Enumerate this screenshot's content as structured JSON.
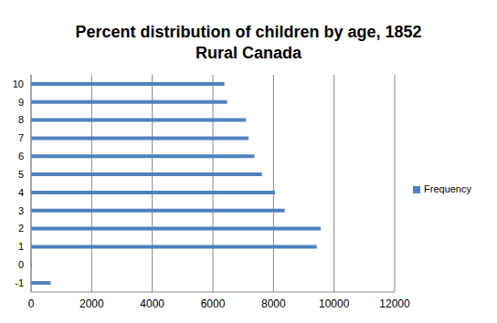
{
  "chart_data": {
    "type": "bar",
    "title": "Percent distribution of children by age, 1852 Rural Canada",
    "orientation": "horizontal",
    "categories": [
      "-1",
      "0",
      "1",
      "2",
      "3",
      "4",
      "5",
      "6",
      "7",
      "8",
      "9",
      "10"
    ],
    "series": [
      {
        "name": "Frequency",
        "color": "#4f81bd",
        "values": [
          650,
          30,
          9430,
          9560,
          8370,
          8050,
          7620,
          7370,
          7180,
          7090,
          6470,
          6380
        ]
      }
    ],
    "xlim": [
      0,
      12000
    ],
    "xticks": [
      0,
      2000,
      4000,
      6000,
      8000,
      10000,
      12000
    ],
    "grid": true,
    "legend": "right"
  }
}
